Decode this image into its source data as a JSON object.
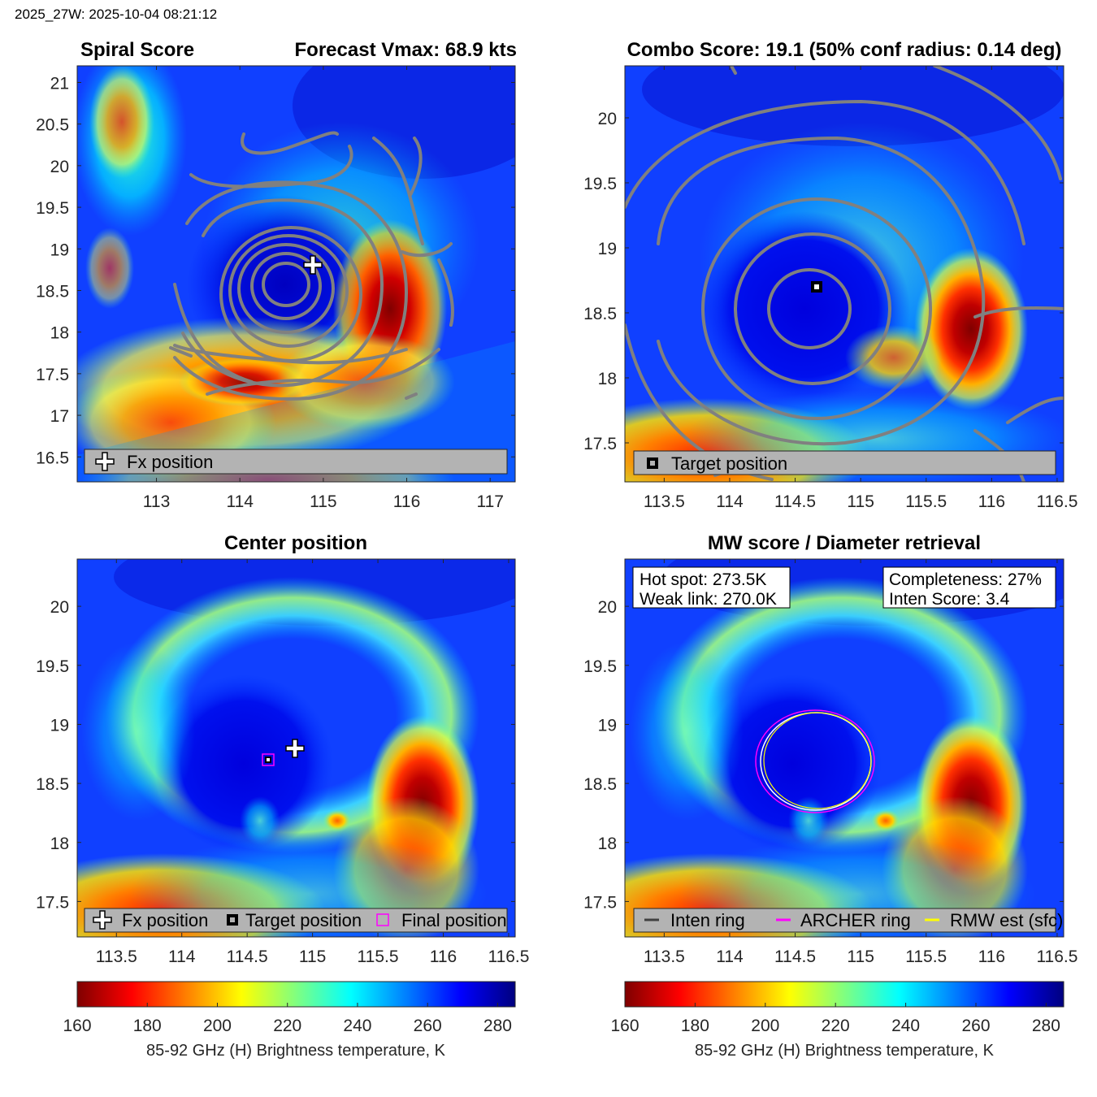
{
  "header": {
    "timestamp": "2025_27W: 2025-10-04 08:21:12"
  },
  "colorscale": {
    "label": "85-92 GHz (H) Brightness temperature, K",
    "ticks": [
      "160",
      "180",
      "200",
      "220",
      "240",
      "260",
      "280"
    ],
    "range": [
      160,
      285
    ],
    "colors": [
      "#7f0000",
      "#ff0000",
      "#ff8000",
      "#ffff00",
      "#80ff80",
      "#00ffff",
      "#0080ff",
      "#0000ff",
      "#00007f"
    ]
  },
  "panels": [
    {
      "id": "spiral",
      "title_left": "Spiral Score",
      "title_right": "Forecast Vmax: 68.9 kts",
      "xticks": [
        "113",
        "114",
        "115",
        "116",
        "117"
      ],
      "yticks": [
        "21",
        "20.5",
        "20",
        "19.5",
        "19",
        "18.5",
        "18",
        "17.5",
        "17",
        "16.5"
      ],
      "legend": [
        {
          "symbol": "plus-white",
          "label": "Fx position"
        }
      ]
    },
    {
      "id": "combo",
      "title": "Combo Score: 19.1  (50% conf radius: 0.14 deg)",
      "xticks": [
        "113.5",
        "114",
        "114.5",
        "115",
        "115.5",
        "116",
        "116.5"
      ],
      "yticks": [
        "20",
        "19.5",
        "19",
        "18.5",
        "18",
        "17.5"
      ],
      "legend": [
        {
          "symbol": "square-black",
          "label": "Target position"
        }
      ]
    },
    {
      "id": "center",
      "title": "Center position",
      "xticks": [
        "113.5",
        "114",
        "114.5",
        "115",
        "115.5",
        "116",
        "116.5"
      ],
      "yticks": [
        "20",
        "19.5",
        "19",
        "18.5",
        "18",
        "17.5"
      ],
      "legend": [
        {
          "symbol": "plus-white",
          "label": "Fx position"
        },
        {
          "symbol": "square-black",
          "label": "Target position"
        },
        {
          "symbol": "square-magenta",
          "label": "Final position"
        }
      ]
    },
    {
      "id": "mw",
      "title": "MW score / Diameter retrieval",
      "xticks": [
        "113.5",
        "114",
        "114.5",
        "115",
        "115.5",
        "116",
        "116.5"
      ],
      "yticks": [
        "20",
        "19.5",
        "19",
        "18.5",
        "18",
        "17.5"
      ],
      "textbox_left": [
        "Hot spot: 273.5K",
        "Weak link: 270.0K"
      ],
      "textbox_right": [
        "Completeness: 27%",
        "Inten Score: 3.4"
      ],
      "legend": [
        {
          "symbol": "line-gray",
          "label": "Inten ring"
        },
        {
          "symbol": "line-magenta",
          "label": "ARCHER ring"
        },
        {
          "symbol": "line-yellow",
          "label": "RMW est (sfc)"
        }
      ]
    }
  ],
  "chart_data": [
    {
      "type": "heatmap",
      "title": "Spiral Score",
      "subtitle": "Forecast Vmax: 68.9 kts",
      "xlim": [
        112.05,
        117.3
      ],
      "ylim": [
        16.2,
        21.2
      ],
      "fx_position": [
        114.9,
        18.8
      ],
      "warm_core_center": [
        114.6,
        18.6
      ],
      "cold_band": [
        [
          115.9,
          18.4
        ],
        [
          114.0,
          17.5
        ]
      ]
    },
    {
      "type": "heatmap",
      "title": "Combo Score: 19.1  (50% conf radius: 0.14 deg)",
      "xlim": [
        113.2,
        116.55
      ],
      "ylim": [
        17.2,
        20.4
      ],
      "target_position": [
        114.7,
        18.7
      ]
    },
    {
      "type": "heatmap",
      "title": "Center position",
      "xlim": [
        113.2,
        116.55
      ],
      "ylim": [
        17.2,
        20.4
      ],
      "fx_position": [
        114.9,
        18.8
      ],
      "target_position": [
        114.7,
        18.7
      ],
      "final_position": [
        114.7,
        18.7
      ],
      "cold_spot": [
        115.9,
        18.35
      ]
    },
    {
      "type": "heatmap",
      "title": "MW score / Diameter retrieval",
      "xlim": [
        113.2,
        116.55
      ],
      "ylim": [
        17.2,
        20.4
      ],
      "hot_spot_K": 273.5,
      "weak_link_K": 270.0,
      "completeness_pct": 27,
      "inten_score": 3.4,
      "rings": [
        {
          "name": "ARCHER ring",
          "center": [
            114.68,
            18.7
          ],
          "rx_deg": 0.45,
          "ry_deg": 0.42,
          "color": "#ff00ff"
        },
        {
          "name": "RMW est (sfc)",
          "center": [
            114.68,
            18.7
          ],
          "rx_deg": 0.4,
          "ry_deg": 0.4,
          "color": "#ffff00"
        },
        {
          "name": "Inten ring",
          "center": [
            114.68,
            18.7
          ],
          "rx_deg": 0.42,
          "ry_deg": 0.41,
          "color": "#ffffff"
        }
      ]
    }
  ]
}
